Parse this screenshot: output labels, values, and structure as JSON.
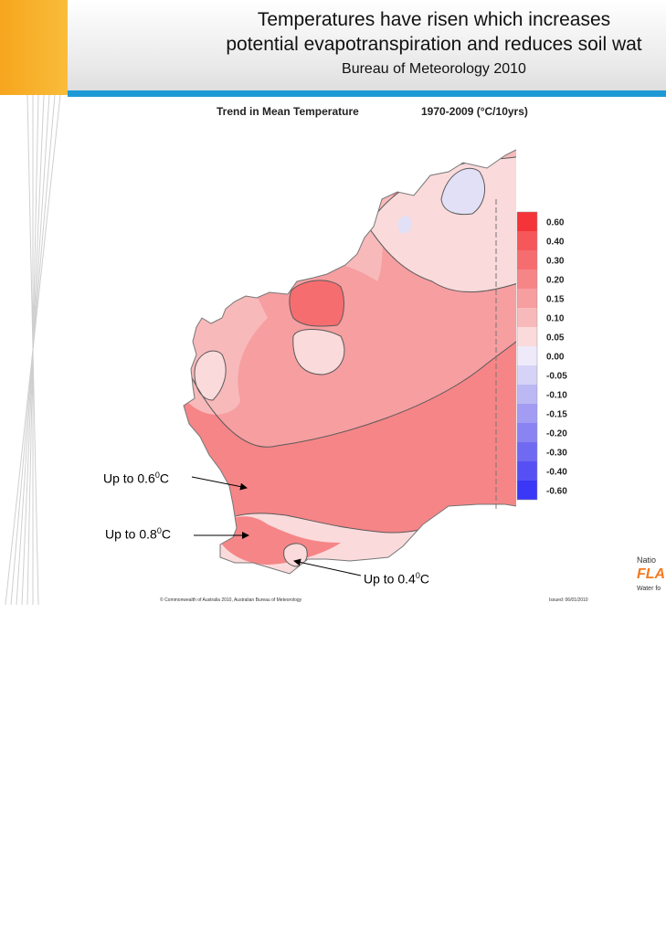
{
  "slide": {
    "title_line1": "Temperatures have risen which increases",
    "title_line2": "potential evapotranspiration and reduces soil wat",
    "subtitle": "Bureau of Meteorology 2010"
  },
  "map": {
    "heading_left": "Trend in Mean Temperature",
    "heading_right": "1970-2009 (°C/10yrs)",
    "legend": [
      {
        "label": "0.60",
        "color": "#f43438"
      },
      {
        "label": "0.40",
        "color": "#f6575a"
      },
      {
        "label": "0.30",
        "color": "#f66d70"
      },
      {
        "label": "0.20",
        "color": "#f68587"
      },
      {
        "label": "0.15",
        "color": "#f69ea0"
      },
      {
        "label": "0.10",
        "color": "#f8b9ba"
      },
      {
        "label": "0.05",
        "color": "#fadadb"
      },
      {
        "label": "0.00",
        "color": "#eeeafa"
      },
      {
        "label": "-0.05",
        "color": "#d6d3f6"
      },
      {
        "label": "-0.10",
        "color": "#bcb8f4"
      },
      {
        "label": "-0.15",
        "color": "#a29df2"
      },
      {
        "label": "-0.20",
        "color": "#8a84f2"
      },
      {
        "label": "-0.30",
        "color": "#7069f2"
      },
      {
        "label": "-0.40",
        "color": "#5650f4"
      },
      {
        "label": "-0.60",
        "color": "#3b37f6"
      }
    ],
    "footer_left": "© Commonwealth of Australia 2010, Australian Bureau of Meteorology",
    "footer_right": "Issued: 06/01/2010"
  },
  "annotations": {
    "a1_text": "Up to 0.6",
    "a1_sup": "0",
    "a1_unit": "C",
    "a2_text": "Up to 0.8",
    "a2_sup": "0",
    "a2_unit": "C",
    "a3_text": "Up to 0.4",
    "a3_sup": "0",
    "a3_unit": "C"
  },
  "logo": {
    "line1": "Natio",
    "line2": "FLA",
    "line3": "Water fo"
  },
  "colors": {
    "header_rule": "#1f9ad6",
    "orange_block": "#f7a51e"
  }
}
